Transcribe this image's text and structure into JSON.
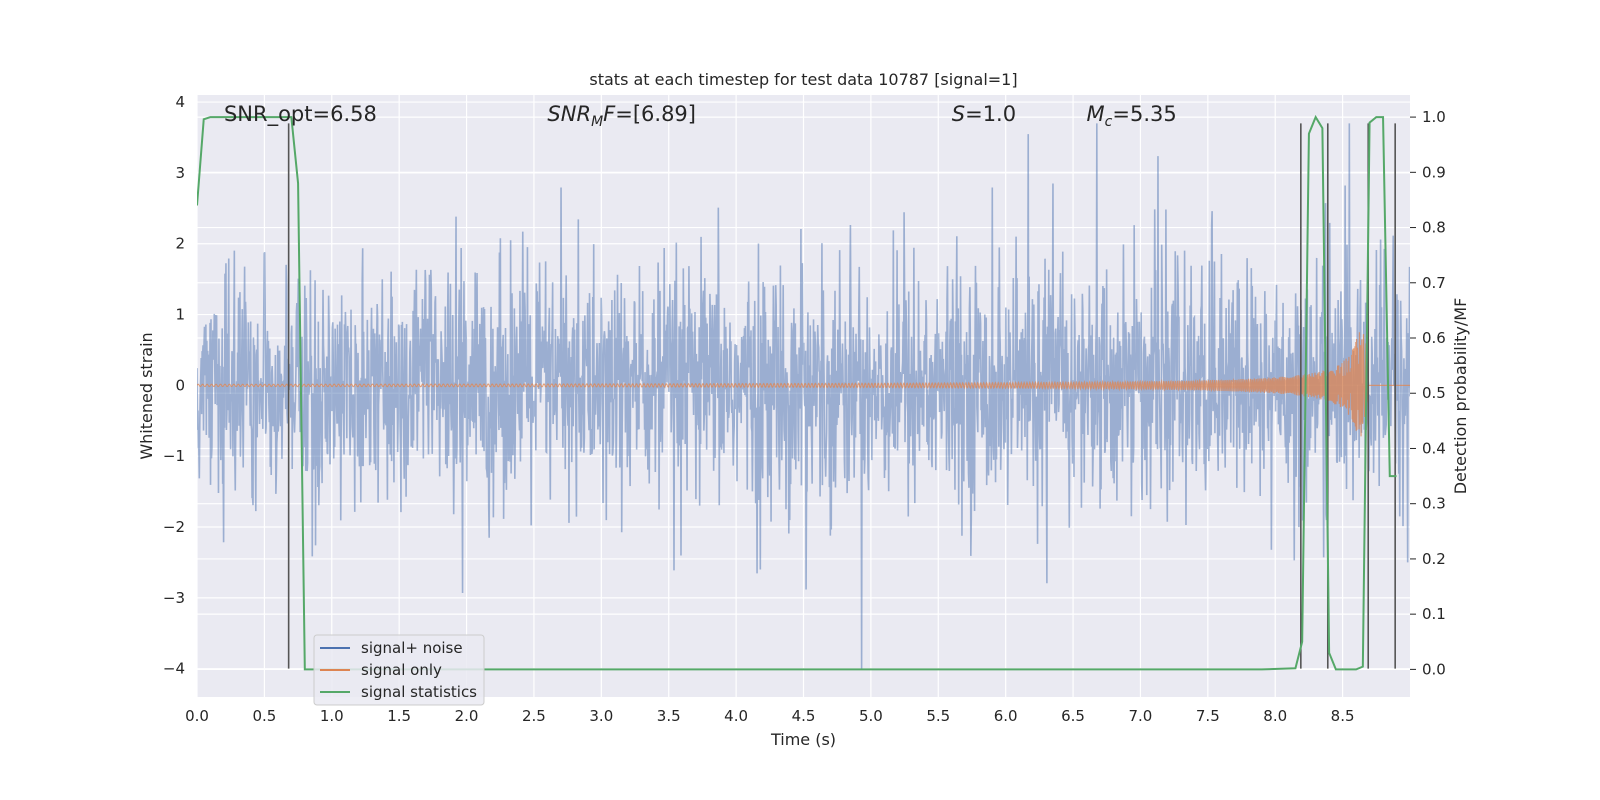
{
  "chart_data": {
    "type": "line",
    "title": "stats at each timestep for test data 10787 [signal=1]",
    "xlabel": "Time (s)",
    "ylabel_left": "Whitened strain",
    "ylabel_right": "Detection probability/MF",
    "xlim": [
      0.0,
      9.0
    ],
    "ylim_left": [
      -4.4,
      4.1
    ],
    "ylim_right": [
      -0.05,
      1.04
    ],
    "x_ticks": [
      "0.0",
      "0.5",
      "1.0",
      "1.5",
      "2.0",
      "2.5",
      "3.0",
      "3.5",
      "4.0",
      "4.5",
      "5.0",
      "5.5",
      "6.0",
      "6.5",
      "7.0",
      "7.5",
      "8.0",
      "8.5"
    ],
    "y_left_ticks": [
      "4",
      "3",
      "2",
      "1",
      "0",
      "−1",
      "−2",
      "−3",
      "−4"
    ],
    "y_right_ticks": [
      "1.0",
      "0.9",
      "0.8",
      "0.7",
      "0.6",
      "0.5",
      "0.4",
      "0.3",
      "0.2",
      "0.1",
      "0.0"
    ],
    "grid": true,
    "legend_position": "lower-left",
    "annotations": [
      {
        "text": "SNR_opt=6.58",
        "x": 0.2
      },
      {
        "text": "SNR_MF=[6.89]",
        "x": 2.6
      },
      {
        "text": "S=1.0",
        "x": 5.6
      },
      {
        "text": "M_c=5.35",
        "x": 6.6
      }
    ],
    "series": [
      {
        "name": "signal+ noise",
        "color": "#4c72b0",
        "description": "whitened strain noise, roughly ±1.5 with spikes to ±3.7",
        "envelope_x": [
          0.0,
          9.0
        ],
        "envelope": [
          -1.6,
          1.6
        ]
      },
      {
        "name": "signal only",
        "color": "#dd8452",
        "chirp": {
          "t_merge": 8.68,
          "start_amp": 0.015,
          "max_amp": 0.75
        }
      },
      {
        "name": "signal statistics",
        "color": "#55a868",
        "x": [
          0.0,
          0.05,
          0.1,
          0.2,
          0.3,
          0.4,
          0.5,
          0.6,
          0.65,
          0.7,
          0.75,
          0.8,
          1.0,
          2.0,
          3.0,
          4.0,
          5.0,
          6.0,
          7.0,
          7.9,
          8.15,
          8.2,
          8.25,
          8.3,
          8.35,
          8.4,
          8.45,
          8.5,
          8.55,
          8.6,
          8.65,
          8.7,
          8.75,
          8.8,
          8.85,
          8.9
        ],
        "y": [
          0.84,
          0.996,
          1.0,
          1.0,
          1.0,
          1.0,
          1.0,
          1.0,
          1.0,
          1.0,
          0.88,
          0.0,
          0.0,
          0.0,
          0.0,
          0.0,
          0.0,
          0.0,
          0.0,
          0.0,
          0.002,
          0.05,
          0.97,
          1.0,
          0.98,
          0.03,
          0.0,
          0.0,
          0.0,
          0.0,
          0.005,
          0.99,
          1.0,
          1.0,
          0.35,
          0.35
        ]
      }
    ],
    "vertical_lines": [
      {
        "x": 0.68,
        "y0": -4.0,
        "y1": 3.7
      },
      {
        "x": 8.19,
        "y0": -4.0,
        "y1": 3.7
      },
      {
        "x": 8.39,
        "y0": -4.0,
        "y1": 3.7
      },
      {
        "x": 8.69,
        "y0": -4.0,
        "y1": 3.7
      },
      {
        "x": 8.89,
        "y0": -4.0,
        "y1": 3.7
      }
    ]
  }
}
